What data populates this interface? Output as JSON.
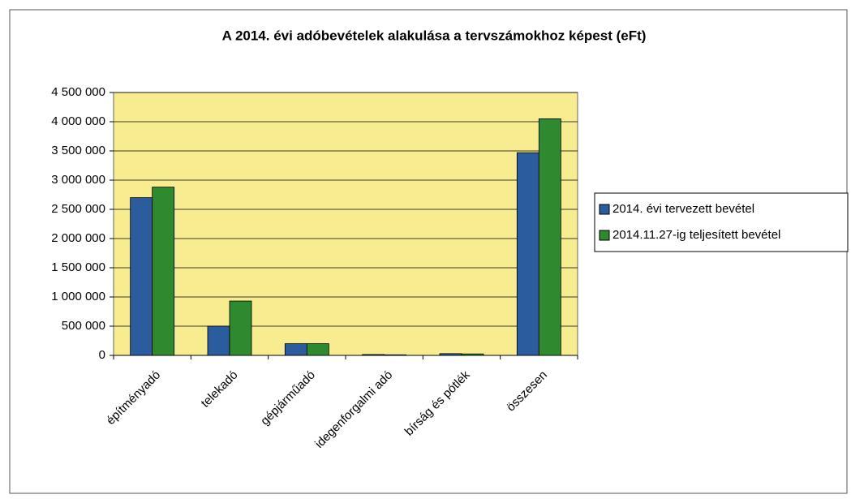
{
  "chart_data": {
    "type": "bar",
    "title": "A 2014. évi adóbevételek alakulása a tervszámokhoz képest (eFt)",
    "categories": [
      "építményadó",
      "telekadó",
      "gépjárműadó",
      "idegenforgalmi adó",
      "bírság és pótlék",
      "összesen"
    ],
    "series": [
      {
        "name": "2014. évi tervezett bevétel",
        "color": "#2b5c9e",
        "values": [
          2700000,
          500000,
          200000,
          15000,
          30000,
          3470000
        ]
      },
      {
        "name": "2014.11.27-ig teljesített bevétel",
        "color": "#2f8a2f",
        "values": [
          2880000,
          930000,
          200000,
          10000,
          25000,
          4050000
        ]
      }
    ],
    "ylim": [
      0,
      4500000
    ],
    "yticks": [
      0,
      {
        "value": 500000,
        "label": "500 000"
      },
      {
        "value": 1000000,
        "label": "1 000 000"
      },
      {
        "value": 1500000,
        "label": "1 500 000"
      },
      {
        "value": 2000000,
        "label": "2 000 000"
      },
      {
        "value": 2500000,
        "label": "2 500 000"
      },
      {
        "value": 3000000,
        "label": "3 000 000"
      },
      {
        "value": 3500000,
        "label": "3 500 000"
      },
      {
        "value": 4000000,
        "label": "4 000 000"
      },
      {
        "value": 4500000,
        "label": "4 500 000"
      }
    ],
    "grid": true,
    "plot_background": "#f7ec8f",
    "legend": "right"
  }
}
